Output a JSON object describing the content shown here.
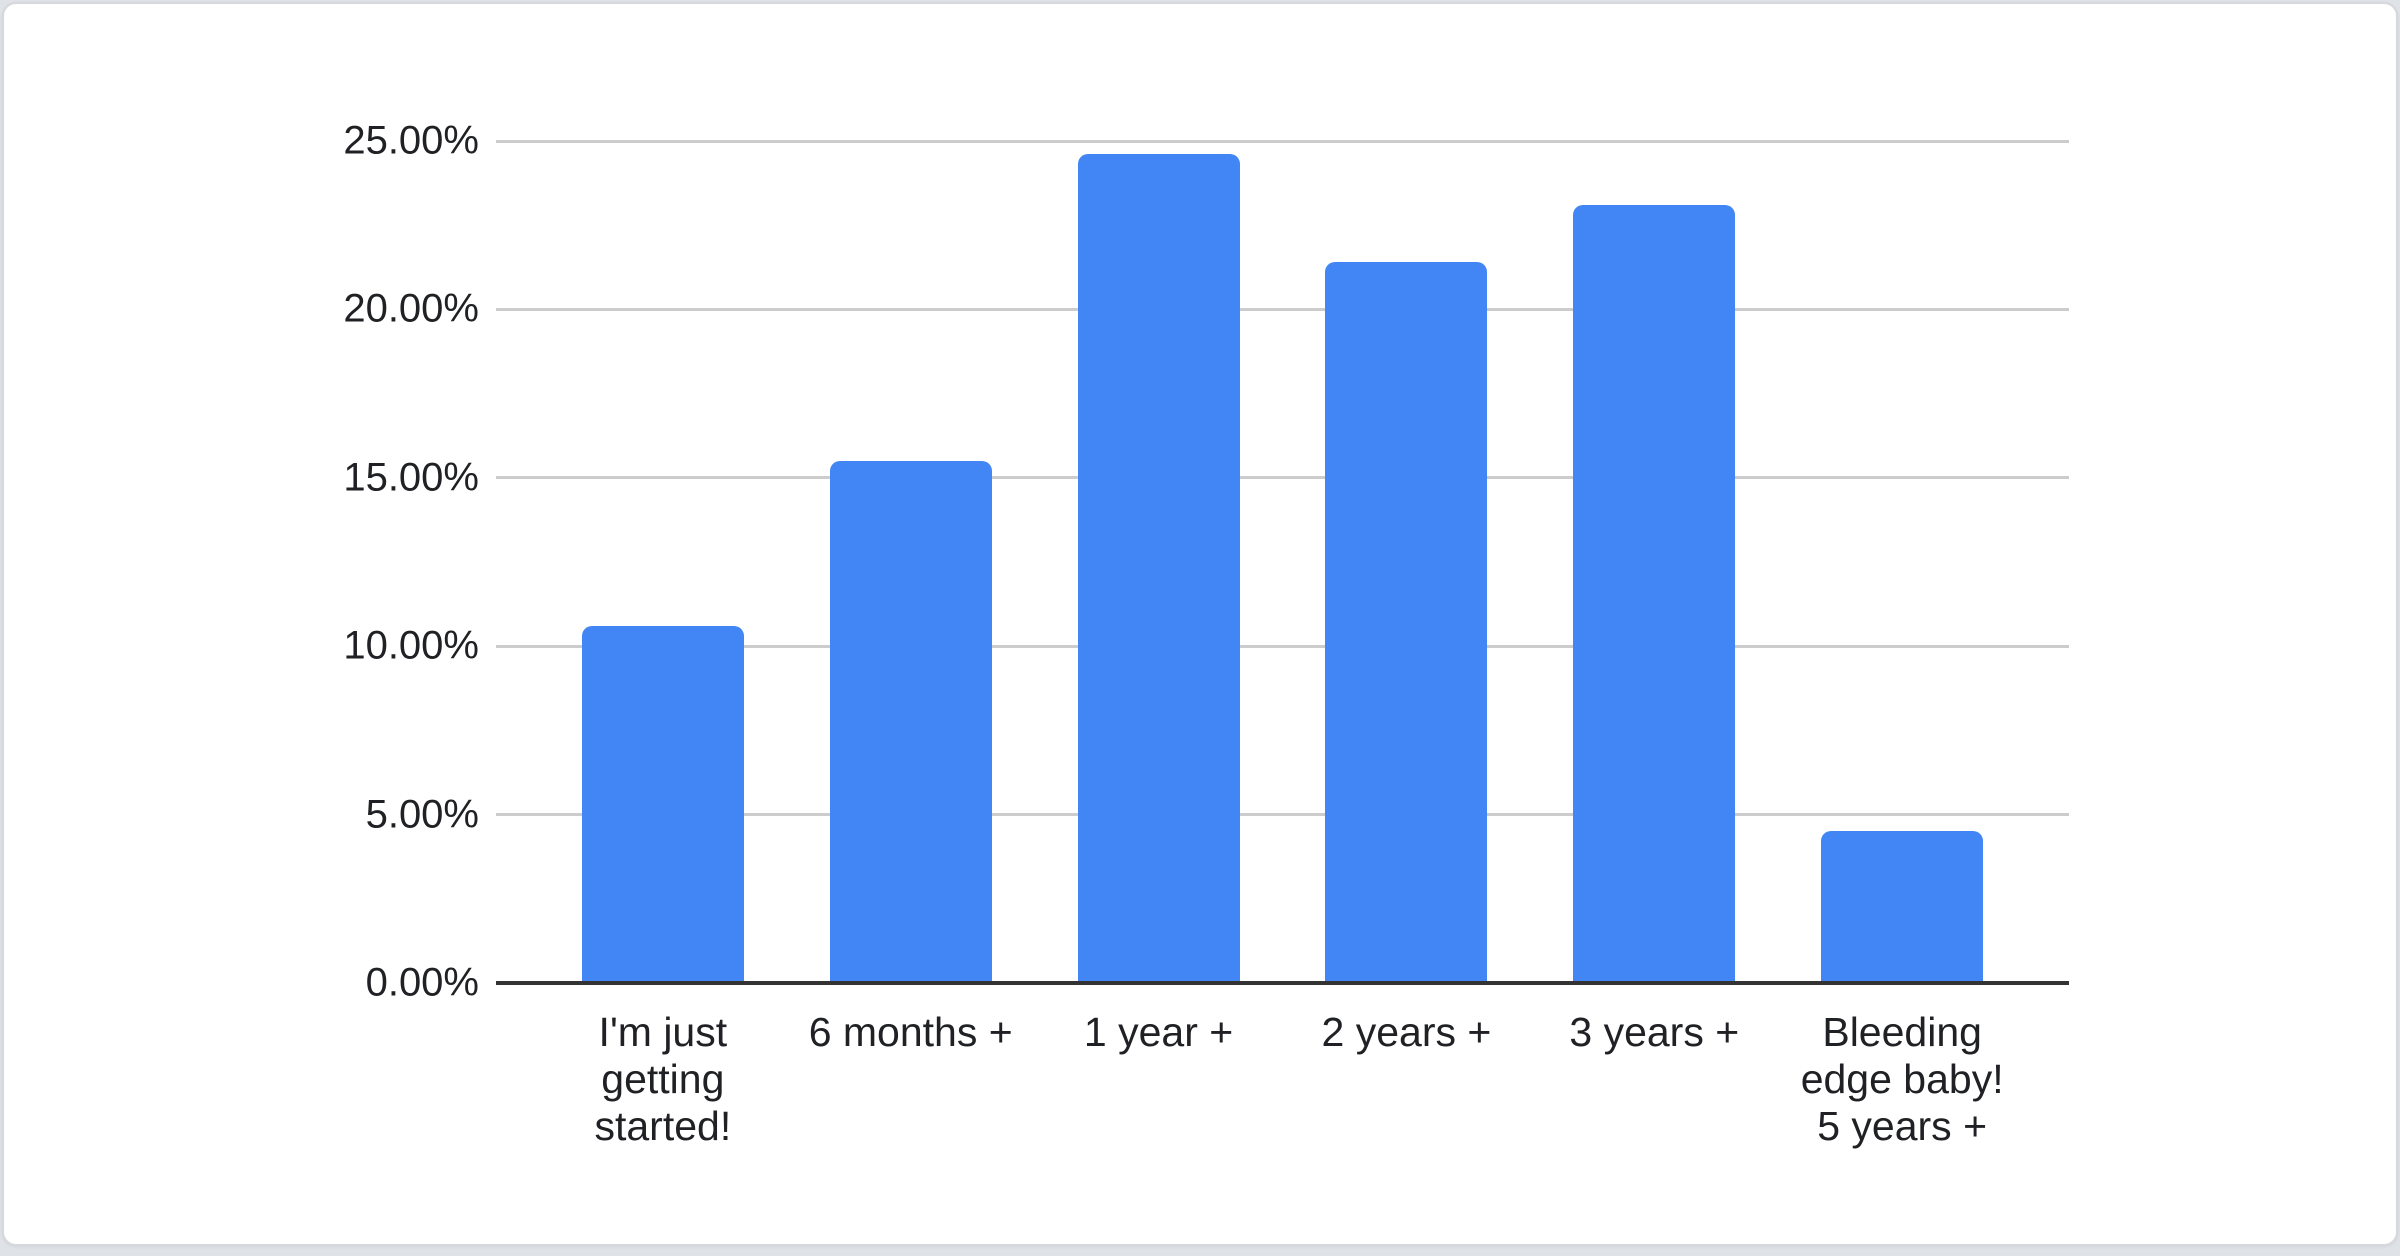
{
  "page": {
    "background_color": "#dfe2e6",
    "card_background": "#ffffff",
    "card_border_color": "#d5d8dc"
  },
  "chart_data": {
    "type": "bar",
    "title": "",
    "categories": [
      "I'm just getting started!",
      "6 months +",
      "1 year +",
      "2 years +",
      "3 years +",
      "Bleeding edge baby! 5 years +"
    ],
    "categories_wrapped": [
      [
        "I'm just",
        "getting",
        "started!"
      ],
      [
        "6 months +"
      ],
      [
        "1 year +"
      ],
      [
        "2 years +"
      ],
      [
        "3 years +"
      ],
      [
        "Bleeding",
        "edge baby!",
        "5 years +"
      ]
    ],
    "values": [
      10.6,
      15.5,
      24.6,
      21.4,
      23.1,
      4.5
    ],
    "value_unit": "%",
    "y_ticks": [
      "0.00%",
      "5.00%",
      "10.00%",
      "15.00%",
      "20.00%",
      "25.00%"
    ],
    "y_tick_values": [
      0,
      5,
      10,
      15,
      20,
      25
    ],
    "ylim": [
      0,
      25
    ],
    "xlabel": "",
    "ylabel": "",
    "grid": true,
    "legend": "none",
    "bar_color": "#4285F4",
    "gridline_color": "#cccccc",
    "baseline_color": "#333333",
    "axis_label_color": "#202124"
  }
}
